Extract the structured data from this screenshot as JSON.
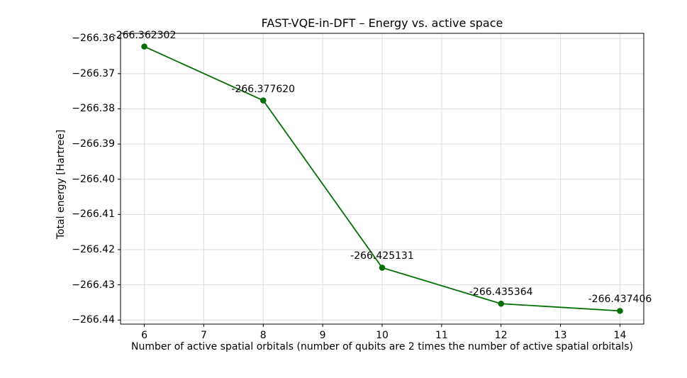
{
  "chart_data": {
    "type": "line",
    "title": "FAST-VQE-in-DFT – Energy vs. active space",
    "xlabel": "Number of active spatial orbitals (number of qubits are 2 times the number of active spatial orbitals)",
    "ylabel": "Total energy [Hartree]",
    "x": [
      6,
      8,
      10,
      12,
      14
    ],
    "y": [
      -266.362302,
      -266.37762,
      -266.425131,
      -266.435364,
      -266.437406
    ],
    "point_labels": [
      "-266.362302",
      "-266.377620",
      "-266.425131",
      "-266.435364",
      "-266.437406"
    ],
    "xticks": [
      6,
      7,
      8,
      9,
      10,
      11,
      12,
      13,
      14
    ],
    "xtick_labels": [
      "6",
      "7",
      "8",
      "9",
      "10",
      "11",
      "12",
      "13",
      "14"
    ],
    "yticks": [
      -266.36,
      -266.37,
      -266.38,
      -266.39,
      -266.4,
      -266.41,
      -266.42,
      -266.43,
      -266.44
    ],
    "ytick_labels": [
      "−266.36",
      "−266.37",
      "−266.38",
      "−266.39",
      "−266.40",
      "−266.41",
      "−266.42",
      "−266.43",
      "−266.44"
    ],
    "xlim": [
      5.6,
      14.4
    ],
    "ylim": [
      -266.44116,
      -266.35855
    ],
    "grid": true,
    "legend": null,
    "line_color": "#066e06",
    "marker": "circle",
    "grid_color": "#dedede",
    "spine_color": "#000000",
    "background_color": "#ffffff"
  }
}
